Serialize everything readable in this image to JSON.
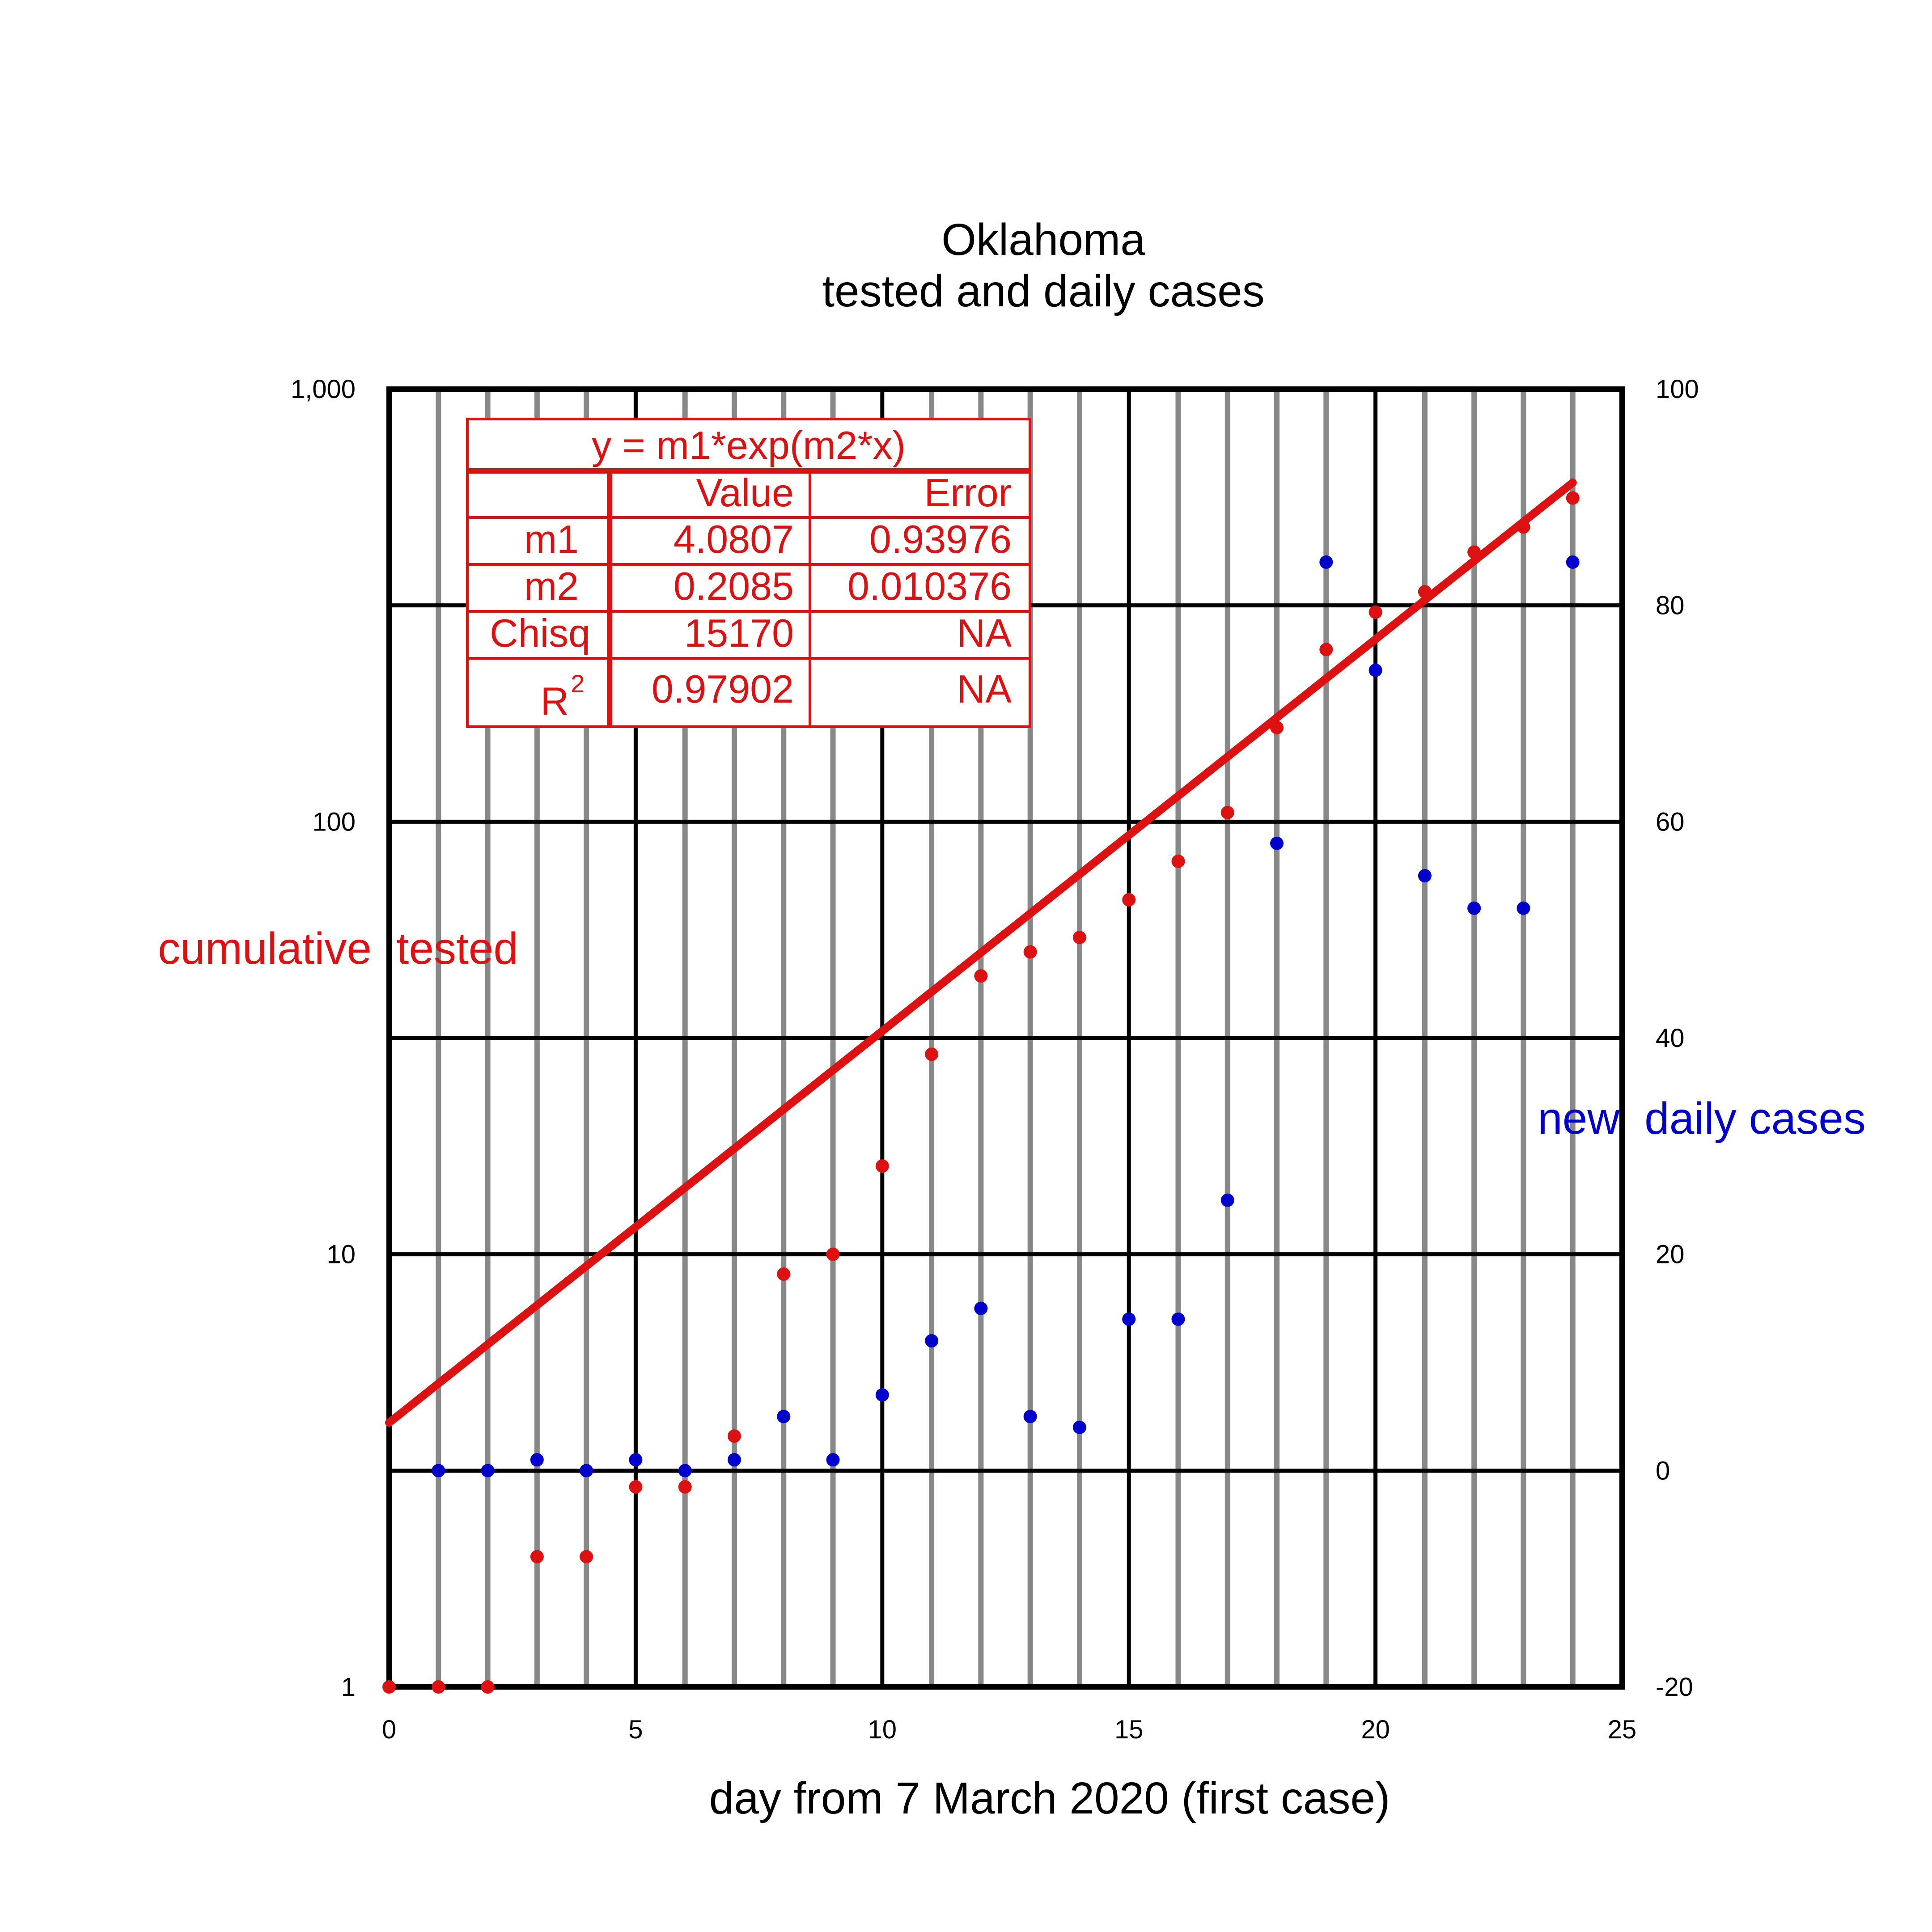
{
  "chart_data": {
    "type": "scatter",
    "title": "Oklahoma",
    "subtitle": "tested and daily cases",
    "xlabel": "day from 7 March 2020 (first case)",
    "ylabel_left": "cumulative  tested",
    "ylabel_right": "new  daily cases",
    "xlim": [
      0,
      25
    ],
    "ylim_left": [
      1,
      1000
    ],
    "ylim_right": [
      -20,
      100
    ],
    "yscale_left": "log",
    "yscale_right": "linear",
    "x_ticks": [
      "0",
      "5",
      "10",
      "15",
      "20",
      "25"
    ],
    "y_left_ticks": [
      "1",
      "10",
      "100",
      "1,000"
    ],
    "y_right_ticks": [
      "-20",
      "0",
      "20",
      "40",
      "60",
      "80",
      "100"
    ],
    "grid": true,
    "colors": {
      "tested": "#dd1111",
      "daily": "#0000cc",
      "major_grid": "#000000",
      "minor_grid": "#888888"
    },
    "series": [
      {
        "name": "cumulative  tested",
        "axis": "left",
        "x": [
          0,
          1,
          2,
          3,
          4,
          5,
          6,
          7,
          8,
          9,
          10,
          11,
          12,
          13,
          14,
          15,
          16,
          17,
          18,
          19,
          20,
          21,
          22,
          23,
          24
        ],
        "y": [
          1,
          1,
          1,
          2,
          2,
          2.9,
          2.9,
          3.8,
          9,
          10,
          16,
          29,
          44,
          50,
          54,
          66,
          81,
          105,
          165,
          250,
          305,
          340,
          420,
          480,
          560
        ]
      },
      {
        "name": "new  daily cases",
        "axis": "right",
        "x": [
          1,
          2,
          3,
          4,
          5,
          6,
          7,
          8,
          9,
          10,
          11,
          12,
          13,
          14,
          15,
          16,
          17,
          18,
          19,
          20,
          21,
          22,
          23,
          24
        ],
        "y": [
          0,
          0,
          1,
          0,
          1,
          0,
          1,
          5,
          1,
          7,
          12,
          15,
          5,
          4,
          14,
          14,
          25,
          58,
          84,
          74,
          55,
          52,
          52,
          84
        ]
      }
    ],
    "fit": {
      "equation": "y = m1*exp(m2*x)",
      "m1": 4.0807,
      "m2": 0.2085,
      "x_range": [
        0,
        24
      ],
      "table": {
        "headers": [
          "",
          "Value",
          "Error"
        ],
        "rows": [
          [
            "m1",
            "4.0807",
            "0.93976"
          ],
          [
            "m2",
            "0.2085",
            "0.010376"
          ],
          [
            "Chisq",
            "15170",
            "NA"
          ],
          [
            "R",
            "0.97902",
            "NA"
          ]
        ],
        "r_superscript": "2"
      }
    }
  }
}
